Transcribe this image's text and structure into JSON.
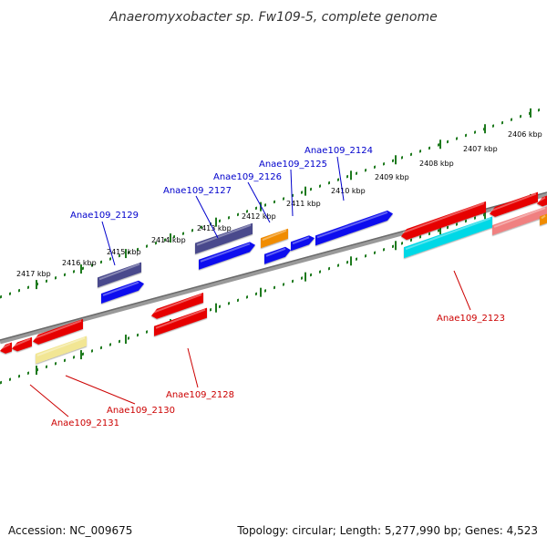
{
  "title": "Anaeromyxobacter sp. Fw109-5, complete genome",
  "footer": {
    "accession": "Accession: NC_009675",
    "topology": "Topology: circular; Length: 5,277,990 bp; Genes: 4,523"
  },
  "colors": {
    "backbone": "#808080",
    "tick": "#1e7a1e",
    "label_top": "#0000cc",
    "label_bottom": "#cc0000"
  },
  "ticks": [
    "2417 kbp",
    "2416 kbp",
    "2415 kbp",
    "2414 kbp",
    "2413 kbp",
    "2412 kbp",
    "2411 kbp",
    "2410 kbp",
    "2409 kbp",
    "2408 kbp",
    "2407 kbp",
    "2406 kbp"
  ],
  "genes_top": [
    "Anae109_2129",
    "Anae109_2127",
    "Anae109_2126",
    "Anae109_2125",
    "Anae109_2124"
  ],
  "genes_bottom": [
    "Anae109_2123",
    "Anae109_2128",
    "Anae109_2130",
    "Anae109_2131"
  ]
}
